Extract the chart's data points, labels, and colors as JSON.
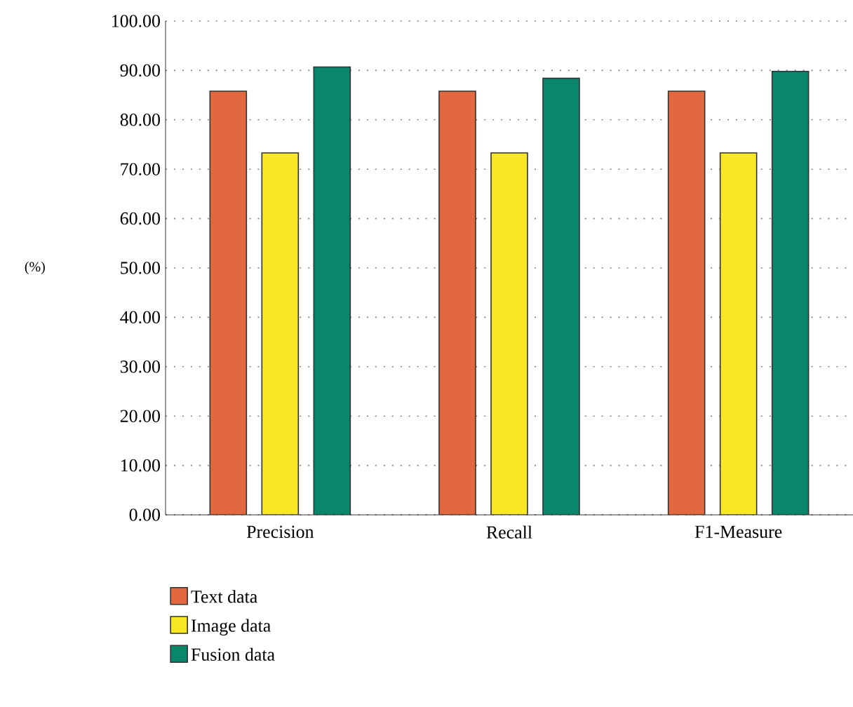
{
  "chart_data": {
    "type": "bar",
    "ylabel": "(%)",
    "categories": [
      "Precision",
      "Recall",
      "F1-Measure"
    ],
    "series": [
      {
        "name": "Text data",
        "color": "#e2693f",
        "values": [
          85.8,
          85.8,
          85.8
        ]
      },
      {
        "name": "Image data",
        "color": "#f7e726",
        "values": [
          73.3,
          73.3,
          73.3
        ]
      },
      {
        "name": "Fusion data",
        "color": "#0a876a",
        "values": [
          90.7,
          88.4,
          89.8
        ]
      }
    ],
    "ylim": [
      0,
      100
    ],
    "yticks": [
      {
        "value": 0,
        "label": "0.00"
      },
      {
        "value": 10,
        "label": "10.00"
      },
      {
        "value": 20,
        "label": "20.00"
      },
      {
        "value": 30,
        "label": "30.00"
      },
      {
        "value": 40,
        "label": "40.00"
      },
      {
        "value": 50,
        "label": "50.00"
      },
      {
        "value": 60,
        "label": "60.00"
      },
      {
        "value": 70,
        "label": "70.00"
      },
      {
        "value": 80,
        "label": "80.00"
      },
      {
        "value": 90,
        "label": "90.00"
      },
      {
        "value": 100,
        "label": "100.00"
      }
    ],
    "grid": "y",
    "legend": "bottom left"
  }
}
